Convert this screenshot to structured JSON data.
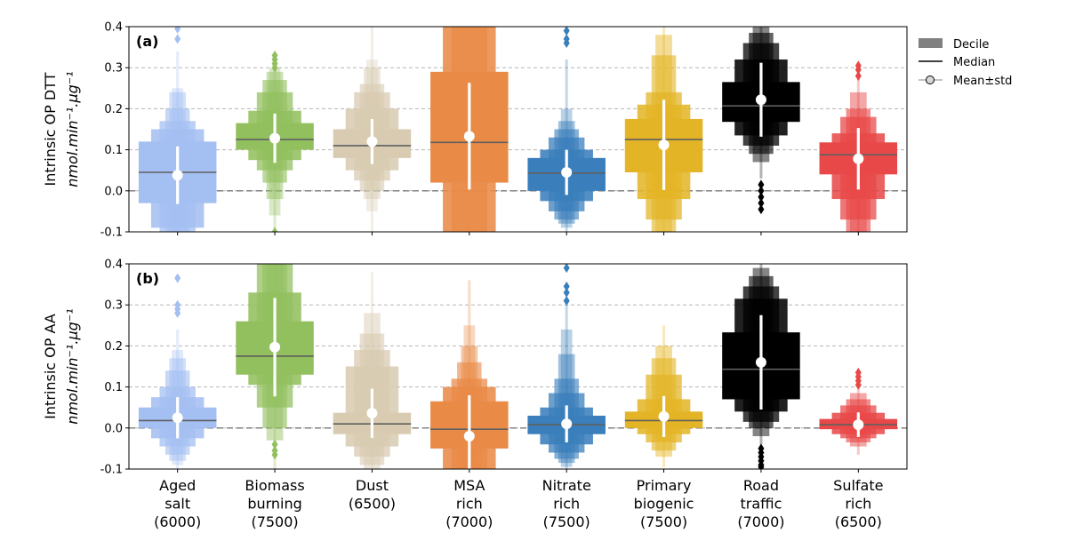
{
  "chart_data": {
    "type": "boxen",
    "categories": [
      {
        "lines": [
          "Aged",
          "salt",
          "(6000)"
        ],
        "color": "#a4bff2"
      },
      {
        "lines": [
          "Biomass",
          "burning",
          "(7500)"
        ],
        "color": "#92c05e"
      },
      {
        "lines": [
          "Dust",
          "(6500)"
        ],
        "color": "#d8cbb1"
      },
      {
        "lines": [
          "MSA",
          "rich",
          "(7000)"
        ],
        "color": "#e98a47"
      },
      {
        "lines": [
          "Nitrate",
          "rich",
          "(7500)"
        ],
        "color": "#3a7ebb"
      },
      {
        "lines": [
          "Primary",
          "biogenic",
          "(7500)"
        ],
        "color": "#e3b526"
      },
      {
        "lines": [
          "Road",
          "traffic",
          "(7000)"
        ],
        "color": "#000000"
      },
      {
        "lines": [
          "Sulfate",
          "rich",
          "(6500)"
        ],
        "color": "#e84848"
      }
    ],
    "ylim": [
      -0.1,
      0.4
    ],
    "yticks": [
      "0.4",
      "0.3",
      "0.2",
      "0.1",
      "0.0",
      "-0.1"
    ],
    "ytick_values": [
      0.4,
      0.3,
      0.2,
      0.1,
      0.0,
      -0.1
    ],
    "grid": "horizontal dashed",
    "legend": {
      "placement": "right",
      "entries": [
        "Decile",
        "Median",
        "Mean±std"
      ]
    },
    "panels": [
      {
        "label": "(a)",
        "ylabel": "Intrinsic OP DTT",
        "ylabel_unit": "nmol.min⁻¹.μg⁻¹",
        "series": [
          {
            "median": 0.045,
            "mean": 0.038,
            "std": 0.07,
            "boxes": [
              [
                -0.03,
                0.12
              ],
              [
                -0.09,
                0.15
              ],
              [
                -0.1,
                0.17
              ],
              [
                -0.1,
                0.2
              ],
              [
                -0.1,
                0.24
              ],
              [
                -0.1,
                0.25
              ]
            ],
            "whisker": [
              -0.1,
              0.34
            ],
            "outliers": [
              0.37,
              0.395
            ]
          },
          {
            "median": 0.125,
            "mean": 0.128,
            "std": 0.06,
            "boxes": [
              [
                0.1,
                0.165
              ],
              [
                0.075,
                0.195
              ],
              [
                0.05,
                0.24
              ],
              [
                0.02,
                0.27
              ],
              [
                -0.02,
                0.29
              ],
              [
                -0.06,
                0.3
              ]
            ],
            "whisker": [
              -0.1,
              0.31
            ],
            "outliers": [
              0.3,
              0.31,
              0.32,
              0.33,
              -0.1
            ]
          },
          {
            "median": 0.11,
            "mean": 0.12,
            "std": 0.055,
            "boxes": [
              [
                0.08,
                0.15
              ],
              [
                0.05,
                0.2
              ],
              [
                0.025,
                0.24
              ],
              [
                0.0,
                0.26
              ],
              [
                -0.02,
                0.3
              ],
              [
                -0.05,
                0.32
              ]
            ],
            "whisker": [
              -0.1,
              0.4
            ],
            "outliers": []
          },
          {
            "median": 0.118,
            "mean": 0.133,
            "std": 0.13,
            "boxes": [
              [
                0.02,
                0.29
              ],
              [
                -0.1,
                0.4
              ],
              [
                -0.1,
                0.4
              ]
            ],
            "whisker": [
              -0.1,
              0.4
            ],
            "outliers": []
          },
          {
            "median": 0.043,
            "mean": 0.045,
            "std": 0.055,
            "boxes": [
              [
                0.0,
                0.08
              ],
              [
                -0.025,
                0.1
              ],
              [
                -0.05,
                0.13
              ],
              [
                -0.07,
                0.15
              ],
              [
                -0.08,
                0.17
              ],
              [
                -0.09,
                0.2
              ]
            ],
            "whisker": [
              -0.1,
              0.32
            ],
            "outliers": [
              0.36,
              0.37,
              0.39
            ]
          },
          {
            "median": 0.125,
            "mean": 0.112,
            "std": 0.11,
            "boxes": [
              [
                0.045,
                0.175
              ],
              [
                -0.02,
                0.21
              ],
              [
                -0.07,
                0.24
              ],
              [
                -0.1,
                0.33
              ],
              [
                -0.1,
                0.38
              ]
            ],
            "whisker": [
              -0.1,
              0.4
            ],
            "outliers": []
          },
          {
            "median": 0.207,
            "mean": 0.222,
            "std": 0.09,
            "boxes": [
              [
                0.168,
                0.265
              ],
              [
                0.135,
                0.32
              ],
              [
                0.11,
                0.36
              ],
              [
                0.09,
                0.385
              ],
              [
                0.07,
                0.4
              ]
            ],
            "whisker": [
              0.03,
              0.4
            ],
            "outliers": [
              0.015,
              0.0,
              -0.015,
              -0.03,
              -0.045
            ]
          },
          {
            "median": 0.088,
            "mean": 0.078,
            "std": 0.075,
            "boxes": [
              [
                0.04,
                0.118
              ],
              [
                -0.02,
                0.14
              ],
              [
                -0.07,
                0.18
              ],
              [
                -0.1,
                0.2
              ],
              [
                -0.1,
                0.24
              ]
            ],
            "whisker": [
              -0.1,
              0.275
            ],
            "outliers": [
              0.28,
              0.295,
              0.305
            ]
          }
        ]
      },
      {
        "label": "(b)",
        "ylabel": "Intrinsic OP AA",
        "ylabel_unit": "nmol.min⁻¹.μg⁻¹",
        "series": [
          {
            "median": 0.018,
            "mean": 0.025,
            "std": 0.05,
            "boxes": [
              [
                0.0,
                0.05
              ],
              [
                -0.025,
                0.075
              ],
              [
                -0.045,
                0.1
              ],
              [
                -0.065,
                0.14
              ],
              [
                -0.08,
                0.17
              ],
              [
                -0.09,
                0.19
              ]
            ],
            "whisker": [
              -0.1,
              0.24
            ],
            "outliers": [
              0.28,
              0.29,
              0.3,
              0.365
            ]
          },
          {
            "median": 0.175,
            "mean": 0.197,
            "std": 0.12,
            "boxes": [
              [
                0.13,
                0.26
              ],
              [
                0.105,
                0.33
              ],
              [
                0.05,
                0.4
              ],
              [
                0.0,
                0.4
              ],
              [
                -0.03,
                0.4
              ]
            ],
            "whisker": [
              -0.1,
              0.4
            ],
            "outliers": [
              -0.04,
              -0.055,
              -0.065
            ]
          },
          {
            "median": 0.01,
            "mean": 0.036,
            "std": 0.06,
            "boxes": [
              [
                -0.015,
                0.037
              ],
              [
                -0.045,
                0.15
              ],
              [
                -0.07,
                0.19
              ],
              [
                -0.09,
                0.23
              ],
              [
                -0.1,
                0.28
              ]
            ],
            "whisker": [
              -0.1,
              0.38
            ],
            "outliers": []
          },
          {
            "median": -0.003,
            "mean": -0.02,
            "std": 0.1,
            "boxes": [
              [
                -0.05,
                0.065
              ],
              [
                -0.1,
                0.1
              ],
              [
                -0.1,
                0.12
              ],
              [
                -0.1,
                0.16
              ],
              [
                -0.1,
                0.2
              ],
              [
                -0.1,
                0.25
              ]
            ],
            "whisker": [
              -0.1,
              0.36
            ],
            "outliers": []
          },
          {
            "median": 0.008,
            "mean": 0.01,
            "std": 0.045,
            "boxes": [
              [
                -0.015,
                0.03
              ],
              [
                -0.04,
                0.05
              ],
              [
                -0.06,
                0.085
              ],
              [
                -0.075,
                0.12
              ],
              [
                -0.085,
                0.18
              ],
              [
                -0.095,
                0.24
              ]
            ],
            "whisker": [
              -0.1,
              0.3
            ],
            "outliers": [
              0.31,
              0.33,
              0.345,
              0.39
            ]
          },
          {
            "median": 0.018,
            "mean": 0.028,
            "std": 0.05,
            "boxes": [
              [
                0.0,
                0.04
              ],
              [
                -0.015,
                0.07
              ],
              [
                -0.035,
                0.13
              ],
              [
                -0.055,
                0.17
              ],
              [
                -0.07,
                0.2
              ]
            ],
            "whisker": [
              -0.095,
              0.25
            ],
            "outliers": []
          },
          {
            "median": 0.143,
            "mean": 0.16,
            "std": 0.115,
            "boxes": [
              [
                0.07,
                0.233
              ],
              [
                0.04,
                0.315
              ],
              [
                0.015,
                0.345
              ],
              [
                0.0,
                0.37
              ],
              [
                -0.02,
                0.39
              ]
            ],
            "whisker": [
              -0.04,
              0.4
            ],
            "outliers": [
              -0.05,
              -0.06,
              -0.07,
              -0.08,
              -0.09,
              -0.095
            ]
          },
          {
            "median": 0.008,
            "mean": 0.008,
            "std": 0.03,
            "boxes": [
              [
                -0.003,
                0.022
              ],
              [
                -0.015,
                0.037
              ],
              [
                -0.025,
                0.055
              ],
              [
                -0.035,
                0.07
              ],
              [
                -0.045,
                0.085
              ]
            ],
            "whisker": [
              -0.065,
              0.1
            ],
            "outliers": [
              0.105,
              0.115,
              0.125,
              0.135
            ]
          }
        ]
      }
    ]
  }
}
